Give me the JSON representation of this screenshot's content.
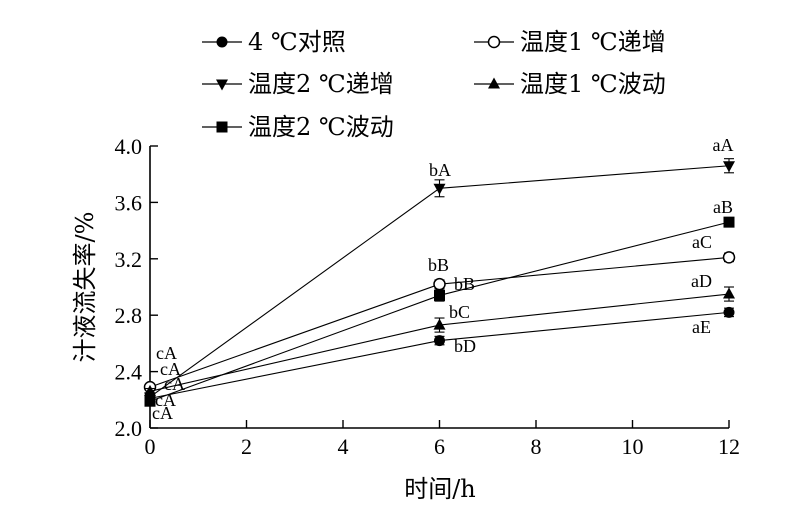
{
  "chart_data": {
    "type": "line",
    "x": [
      0,
      6,
      12
    ],
    "xlabel": "时间/h",
    "ylabel": "汁液流失率/%",
    "xlim": [
      0,
      12
    ],
    "ylim": [
      2.0,
      4.0
    ],
    "xticks": [
      "0",
      "2",
      "4",
      "6",
      "8",
      "10",
      "12"
    ],
    "yticks": [
      "2.0",
      "2.4",
      "2.8",
      "3.2",
      "3.6",
      "4.0"
    ],
    "legend_position": "top",
    "grid": false,
    "series": [
      {
        "name": "4 ℃对照",
        "marker": "filled-circle",
        "values": [
          2.21,
          2.62,
          2.82
        ],
        "errors": [
          0.02,
          0.03,
          0.03
        ],
        "labels": [
          "cA",
          "bD",
          "aE"
        ]
      },
      {
        "name": "温度1 ℃递增",
        "marker": "open-circle",
        "values": [
          2.29,
          3.02,
          3.21
        ],
        "errors": [
          0.02,
          0.03,
          0.03
        ],
        "labels": [
          "cA",
          "bB",
          "aC"
        ]
      },
      {
        "name": "温度2 ℃递增",
        "marker": "filled-triangle-down",
        "values": [
          2.22,
          3.7,
          3.86
        ],
        "errors": [
          0.03,
          0.06,
          0.05
        ],
        "labels": [
          "cA",
          "bA",
          "aA"
        ]
      },
      {
        "name": "温度1 ℃波动",
        "marker": "filled-triangle-up",
        "values": [
          2.26,
          2.73,
          2.95
        ],
        "errors": [
          0.02,
          0.05,
          0.05
        ],
        "labels": [
          "cA",
          "bC",
          "aD"
        ]
      },
      {
        "name": "温度2 ℃波动",
        "marker": "filled-square",
        "values": [
          2.19,
          2.94,
          3.46
        ],
        "errors": [
          0.02,
          0.04,
          0.02
        ],
        "labels": [
          "cA",
          "bB",
          "aB"
        ]
      }
    ]
  }
}
